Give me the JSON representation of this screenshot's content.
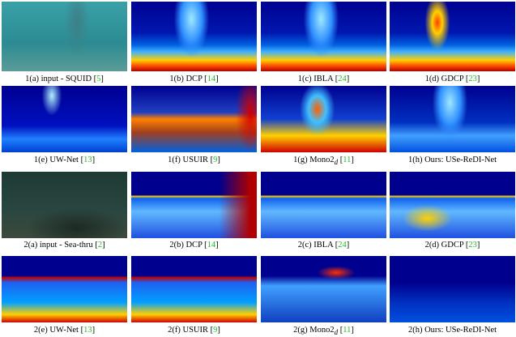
{
  "panels": [
    {
      "caption": [
        {
          "text": "1(a) input - SQUID ["
        },
        {
          "text": "5",
          "cite": true
        },
        {
          "text": "]"
        }
      ]
    },
    {
      "caption": [
        {
          "text": "1(b) DCP ["
        },
        {
          "text": "14",
          "cite": true
        },
        {
          "text": "]"
        }
      ]
    },
    {
      "caption": [
        {
          "text": "1(c) IBLA ["
        },
        {
          "text": "24",
          "cite": true
        },
        {
          "text": "]"
        }
      ]
    },
    {
      "caption": [
        {
          "text": "1(d) GDCP ["
        },
        {
          "text": "23",
          "cite": true
        },
        {
          "text": "]"
        }
      ]
    },
    {
      "caption": [
        {
          "text": "1(e) UW-Net ["
        },
        {
          "text": "13",
          "cite": true
        },
        {
          "text": "]"
        }
      ]
    },
    {
      "caption": [
        {
          "text": "1(f) USUIR ["
        },
        {
          "text": "9",
          "cite": true
        },
        {
          "text": "]"
        }
      ]
    },
    {
      "caption": [
        {
          "text": "1(g) Mono2"
        },
        {
          "text": "d",
          "sub": true
        },
        {
          "text": " ["
        },
        {
          "text": "11",
          "cite": true
        },
        {
          "text": "]"
        }
      ]
    },
    {
      "caption": [
        {
          "text": "1(h) Ours: USe-ReDI-Net"
        }
      ]
    },
    {
      "caption": [
        {
          "text": "2(a) input - Sea-thru ["
        },
        {
          "text": "2",
          "cite": true
        },
        {
          "text": "]"
        }
      ]
    },
    {
      "caption": [
        {
          "text": "2(b) DCP ["
        },
        {
          "text": "14",
          "cite": true
        },
        {
          "text": "]"
        }
      ]
    },
    {
      "caption": [
        {
          "text": "2(c) IBLA ["
        },
        {
          "text": "24",
          "cite": true
        },
        {
          "text": "]"
        }
      ]
    },
    {
      "caption": [
        {
          "text": "2(d) GDCP ["
        },
        {
          "text": "23",
          "cite": true
        },
        {
          "text": "]"
        }
      ]
    },
    {
      "caption": [
        {
          "text": "2(e) UW-Net ["
        },
        {
          "text": "13",
          "cite": true
        },
        {
          "text": "]"
        }
      ]
    },
    {
      "caption": [
        {
          "text": "2(f) USUIR ["
        },
        {
          "text": "9",
          "cite": true
        },
        {
          "text": "]"
        }
      ]
    },
    {
      "caption": [
        {
          "text": "2(g) Mono2"
        },
        {
          "text": "d",
          "sub": true
        },
        {
          "text": " ["
        },
        {
          "text": "11",
          "cite": true
        },
        {
          "text": "]"
        }
      ]
    },
    {
      "caption": [
        {
          "text": "2(h) Ours: USe-ReDI-Net"
        }
      ]
    }
  ]
}
